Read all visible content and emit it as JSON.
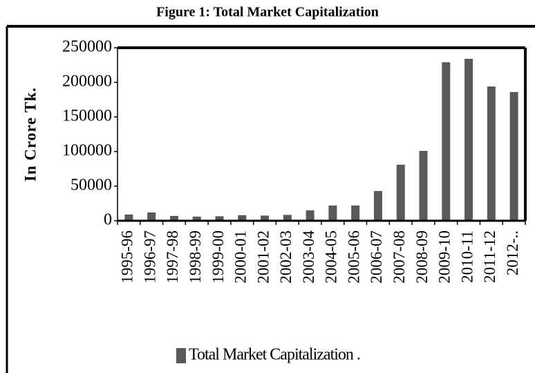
{
  "chart_data": {
    "type": "bar",
    "title": "Figure 1: Total Market Capitalization",
    "y_label": "In Crore Tk.",
    "categories": [
      "1995-96",
      "1996-97",
      "1997-98",
      "1998-99",
      "1999-00",
      "2000-01",
      "2001-02",
      "2002-03",
      "2003-04",
      "2004-05",
      "2005-06",
      "2006-07",
      "2007-08",
      "2008-09",
      "2009-10",
      "2010-11",
      "2011-12",
      "2012-.."
    ],
    "series": [
      {
        "name": "Total Market Capitalization .",
        "color": "#595959",
        "values": [
          9000,
          12000,
          7000,
          6000,
          6500,
          8000,
          7500,
          8500,
          15000,
          22000,
          22000,
          43000,
          81000,
          101000,
          229000,
          234000,
          194000,
          186000
        ]
      }
    ],
    "ylim": [
      0,
      250000
    ],
    "yticks": [
      0,
      50000,
      100000,
      150000,
      200000,
      250000
    ],
    "legend": "bottom"
  }
}
